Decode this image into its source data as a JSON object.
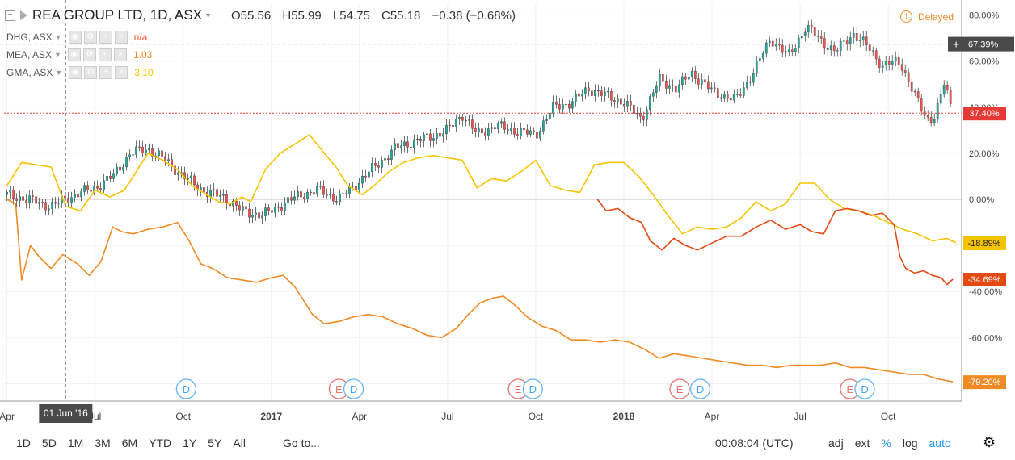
{
  "header": {
    "symbol": "REA GROUP LTD, 1D, ASX",
    "open": "O55.56",
    "high": "H55.99",
    "low": "L54.75",
    "close": "C55.18",
    "change": "−0.38 (−0.68%)",
    "delayed": "Delayed"
  },
  "compare": [
    {
      "symbol": "DHG, ASX",
      "value": "n/a",
      "color": "#f4511e"
    },
    {
      "symbol": "MEA, ASX",
      "value": "1.03",
      "color": "#f08a24"
    },
    {
      "symbol": "GMA, ASX",
      "value": "3.10",
      "color": "#f5c400"
    }
  ],
  "icons": [
    "eye-icon",
    "settings-icon",
    "plus-icon",
    "close-icon"
  ],
  "crosshair_date": "01 Jun '16",
  "chart_data": {
    "type": "line",
    "y_unit": "percent",
    "ylim": [
      -85,
      85
    ],
    "y_ticks": [
      "80.00%",
      "60.00%",
      "40.00%",
      "20.00%",
      "0.00%",
      "-20.00%",
      "-40.00%",
      "-60.00%",
      "-80.00%"
    ],
    "y_tick_values": [
      80,
      60,
      40,
      20,
      0,
      -20,
      -40,
      -60,
      -80
    ],
    "x_ticks": [
      "Apr",
      "Jul",
      "Oct",
      "2017",
      "Apr",
      "Jul",
      "Oct",
      "2018",
      "Apr",
      "Jul",
      "Oct"
    ],
    "x_tick_months": [
      0,
      3,
      6,
      9,
      12,
      15,
      18,
      21,
      24,
      27,
      30
    ],
    "x_range_months": [
      -0.1,
      32.5
    ],
    "crosshair_price_label": "67.39%",
    "crosshair_price_value": 67.39,
    "crosshair_month": 2.0,
    "series": [
      {
        "name": "REA GROUP LTD",
        "style": "candles",
        "color": "#26a69a",
        "down_color": "#ef5350",
        "last_label": "37.40%",
        "last_value": 37.4,
        "x": [
          0,
          0.7,
          1.5,
          2.3,
          3,
          3.6,
          4.2,
          4.8,
          5.4,
          6.0,
          6.8,
          7.4,
          8,
          8.7,
          9.4,
          10,
          10.6,
          11.3,
          12,
          12.6,
          13.2,
          13.8,
          14.4,
          15,
          15.5,
          16,
          16.6,
          17.2,
          18,
          18.6,
          19.2,
          19.8,
          20.4,
          21,
          21.6,
          22.2,
          22.8,
          23.3,
          24,
          24.8,
          25.4,
          26,
          26.6,
          27.2,
          27.8,
          28.2,
          28.8,
          29.4,
          29.8,
          30.4,
          30.9,
          31.3,
          31.6,
          31.9,
          32.2
        ],
        "y": [
          2,
          0,
          -3,
          2,
          5,
          10,
          20,
          22,
          17,
          10,
          3,
          1,
          -5,
          -7,
          -2,
          2,
          4,
          0,
          8,
          15,
          22,
          25,
          27,
          30,
          37,
          28,
          32,
          30,
          28,
          40,
          42,
          48,
          45,
          42,
          35,
          52,
          48,
          55,
          47,
          43,
          55,
          70,
          62,
          75,
          68,
          64,
          72,
          65,
          58,
          60,
          45,
          35,
          36,
          50,
          38
        ]
      },
      {
        "name": "GMA, ASX",
        "style": "line",
        "color": "#f5c400",
        "last_label": "-18.89%",
        "last_value": -18.89,
        "x": [
          0,
          0.5,
          1.0,
          1.5,
          2.0,
          2.5,
          3.0,
          3.5,
          4.0,
          4.3,
          4.8,
          5.3,
          5.8,
          6.3,
          6.8,
          7.2,
          7.6,
          8.0,
          8.3,
          8.8,
          9.3,
          9.8,
          10.3,
          10.8,
          11.2,
          11.6,
          12.1,
          12.5,
          13.0,
          13.5,
          14.0,
          14.5,
          15.0,
          15.5,
          16.0,
          16.5,
          17.0,
          17.5,
          18.0,
          18.5,
          19.0,
          19.5,
          20.0,
          20.5,
          21.0,
          21.5,
          22.0,
          22.5,
          23.0,
          23.5,
          24.0,
          24.5,
          25.0,
          25.5,
          26.0,
          26.5,
          27.0,
          27.5,
          28.0,
          28.5,
          29.0,
          29.5,
          30.0,
          30.5,
          31.0,
          31.5,
          32.0,
          32.3
        ],
        "y": [
          6,
          16,
          15,
          14,
          -3,
          -5,
          4,
          1,
          4,
          10,
          20,
          17,
          13,
          6,
          2,
          -1,
          -2,
          1,
          -1,
          13,
          20,
          24,
          28,
          20,
          14,
          6,
          2,
          6,
          12,
          16,
          18,
          19,
          18,
          17,
          5,
          9,
          8,
          12,
          17,
          6,
          4,
          3,
          15,
          16,
          16,
          10,
          2,
          -7,
          -15,
          -12,
          -13,
          -12,
          -8,
          -1,
          -5,
          -2,
          7,
          7,
          0,
          -4,
          -5,
          -7,
          -10,
          -13,
          -15,
          -18,
          -17,
          -18.89
        ]
      },
      {
        "name": "DHG, ASX",
        "style": "line",
        "color": "#e34a12",
        "last_label": "-34.69%",
        "last_value": -34.69,
        "x": [
          20.1,
          20.4,
          20.8,
          21.2,
          21.6,
          21.9,
          22.3,
          22.7,
          23.1,
          23.5,
          24.0,
          24.5,
          25.0,
          25.5,
          26.0,
          26.5,
          27.0,
          27.4,
          27.8,
          28.2,
          28.6,
          29.0,
          29.4,
          29.8,
          30.2,
          30.4,
          30.6,
          30.9,
          31.2,
          31.5,
          31.8,
          32.0,
          32.2
        ],
        "y": [
          0,
          -5,
          -4,
          -8,
          -10,
          -18,
          -22,
          -17,
          -20,
          -22,
          -19,
          -16,
          -16,
          -12,
          -9,
          -13,
          -11,
          -14,
          -15,
          -5,
          -4,
          -5,
          -7,
          -6,
          -11,
          -25,
          -30,
          -32,
          -31,
          -33,
          -34,
          -37,
          -34.69
        ]
      },
      {
        "name": "MEA, ASX",
        "style": "line",
        "color": "#f08a24",
        "last_label": "-79.20%",
        "last_value": -79.2,
        "x": [
          0,
          0.3,
          0.5,
          0.8,
          1.1,
          1.5,
          1.9,
          2.4,
          2.8,
          3.2,
          3.6,
          3.9,
          4.3,
          4.8,
          5.3,
          5.8,
          6.2,
          6.6,
          7.0,
          7.5,
          8.0,
          8.5,
          9.0,
          9.4,
          9.8,
          10.1,
          10.4,
          10.8,
          11.3,
          11.8,
          12.3,
          12.8,
          13.3,
          13.8,
          14.3,
          14.8,
          15.3,
          15.7,
          16.1,
          16.5,
          16.9,
          17.3,
          17.7,
          18.2,
          18.7,
          19.2,
          19.7,
          20.2,
          20.7,
          21.2,
          21.7,
          22.2,
          22.7,
          23.2,
          23.7,
          24.2,
          24.7,
          25.2,
          25.7,
          26.2,
          26.7,
          27.2,
          27.7,
          28.2,
          28.7,
          29.2,
          29.7,
          30.2,
          30.7,
          31.2,
          31.7,
          32.2
        ],
        "y": [
          0,
          -2,
          -35,
          -20,
          -25,
          -30,
          -24,
          -28,
          -33,
          -27,
          -12,
          -14,
          -15,
          -13,
          -12,
          -10,
          -18,
          -28,
          -30,
          -34,
          -35,
          -36,
          -34,
          -33,
          -38,
          -44,
          -50,
          -54,
          -53,
          -51,
          -50,
          -51,
          -54,
          -56,
          -59,
          -60,
          -56,
          -50,
          -45,
          -43,
          -42,
          -46,
          -51,
          -55,
          -57,
          -61,
          -61,
          -62,
          -61,
          -62,
          -65,
          -69,
          -67,
          -68,
          -69,
          -70,
          -71,
          -72,
          -72,
          -73,
          -72,
          -72,
          -72,
          -71,
          -73,
          -73,
          -74,
          -75,
          -76,
          -76,
          -78,
          -79.2
        ]
      }
    ],
    "events": [
      {
        "type": "D",
        "month": 6.1
      },
      {
        "type": "E",
        "month": 11.3
      },
      {
        "type": "D",
        "month": 11.8
      },
      {
        "type": "E",
        "month": 17.4
      },
      {
        "type": "D",
        "month": 17.9
      },
      {
        "type": "E",
        "month": 22.9
      },
      {
        "type": "D",
        "month": 23.6
      },
      {
        "type": "E",
        "month": 28.7
      },
      {
        "type": "D",
        "month": 29.2
      }
    ]
  },
  "bottom_bar": {
    "ranges": [
      "1D",
      "5D",
      "1M",
      "3M",
      "6M",
      "YTD",
      "1Y",
      "5Y",
      "All"
    ],
    "goto": "Go to...",
    "clock": "00:08:04 (UTC)",
    "toggles": [
      "adj",
      "ext",
      "%",
      "log",
      "auto"
    ]
  }
}
